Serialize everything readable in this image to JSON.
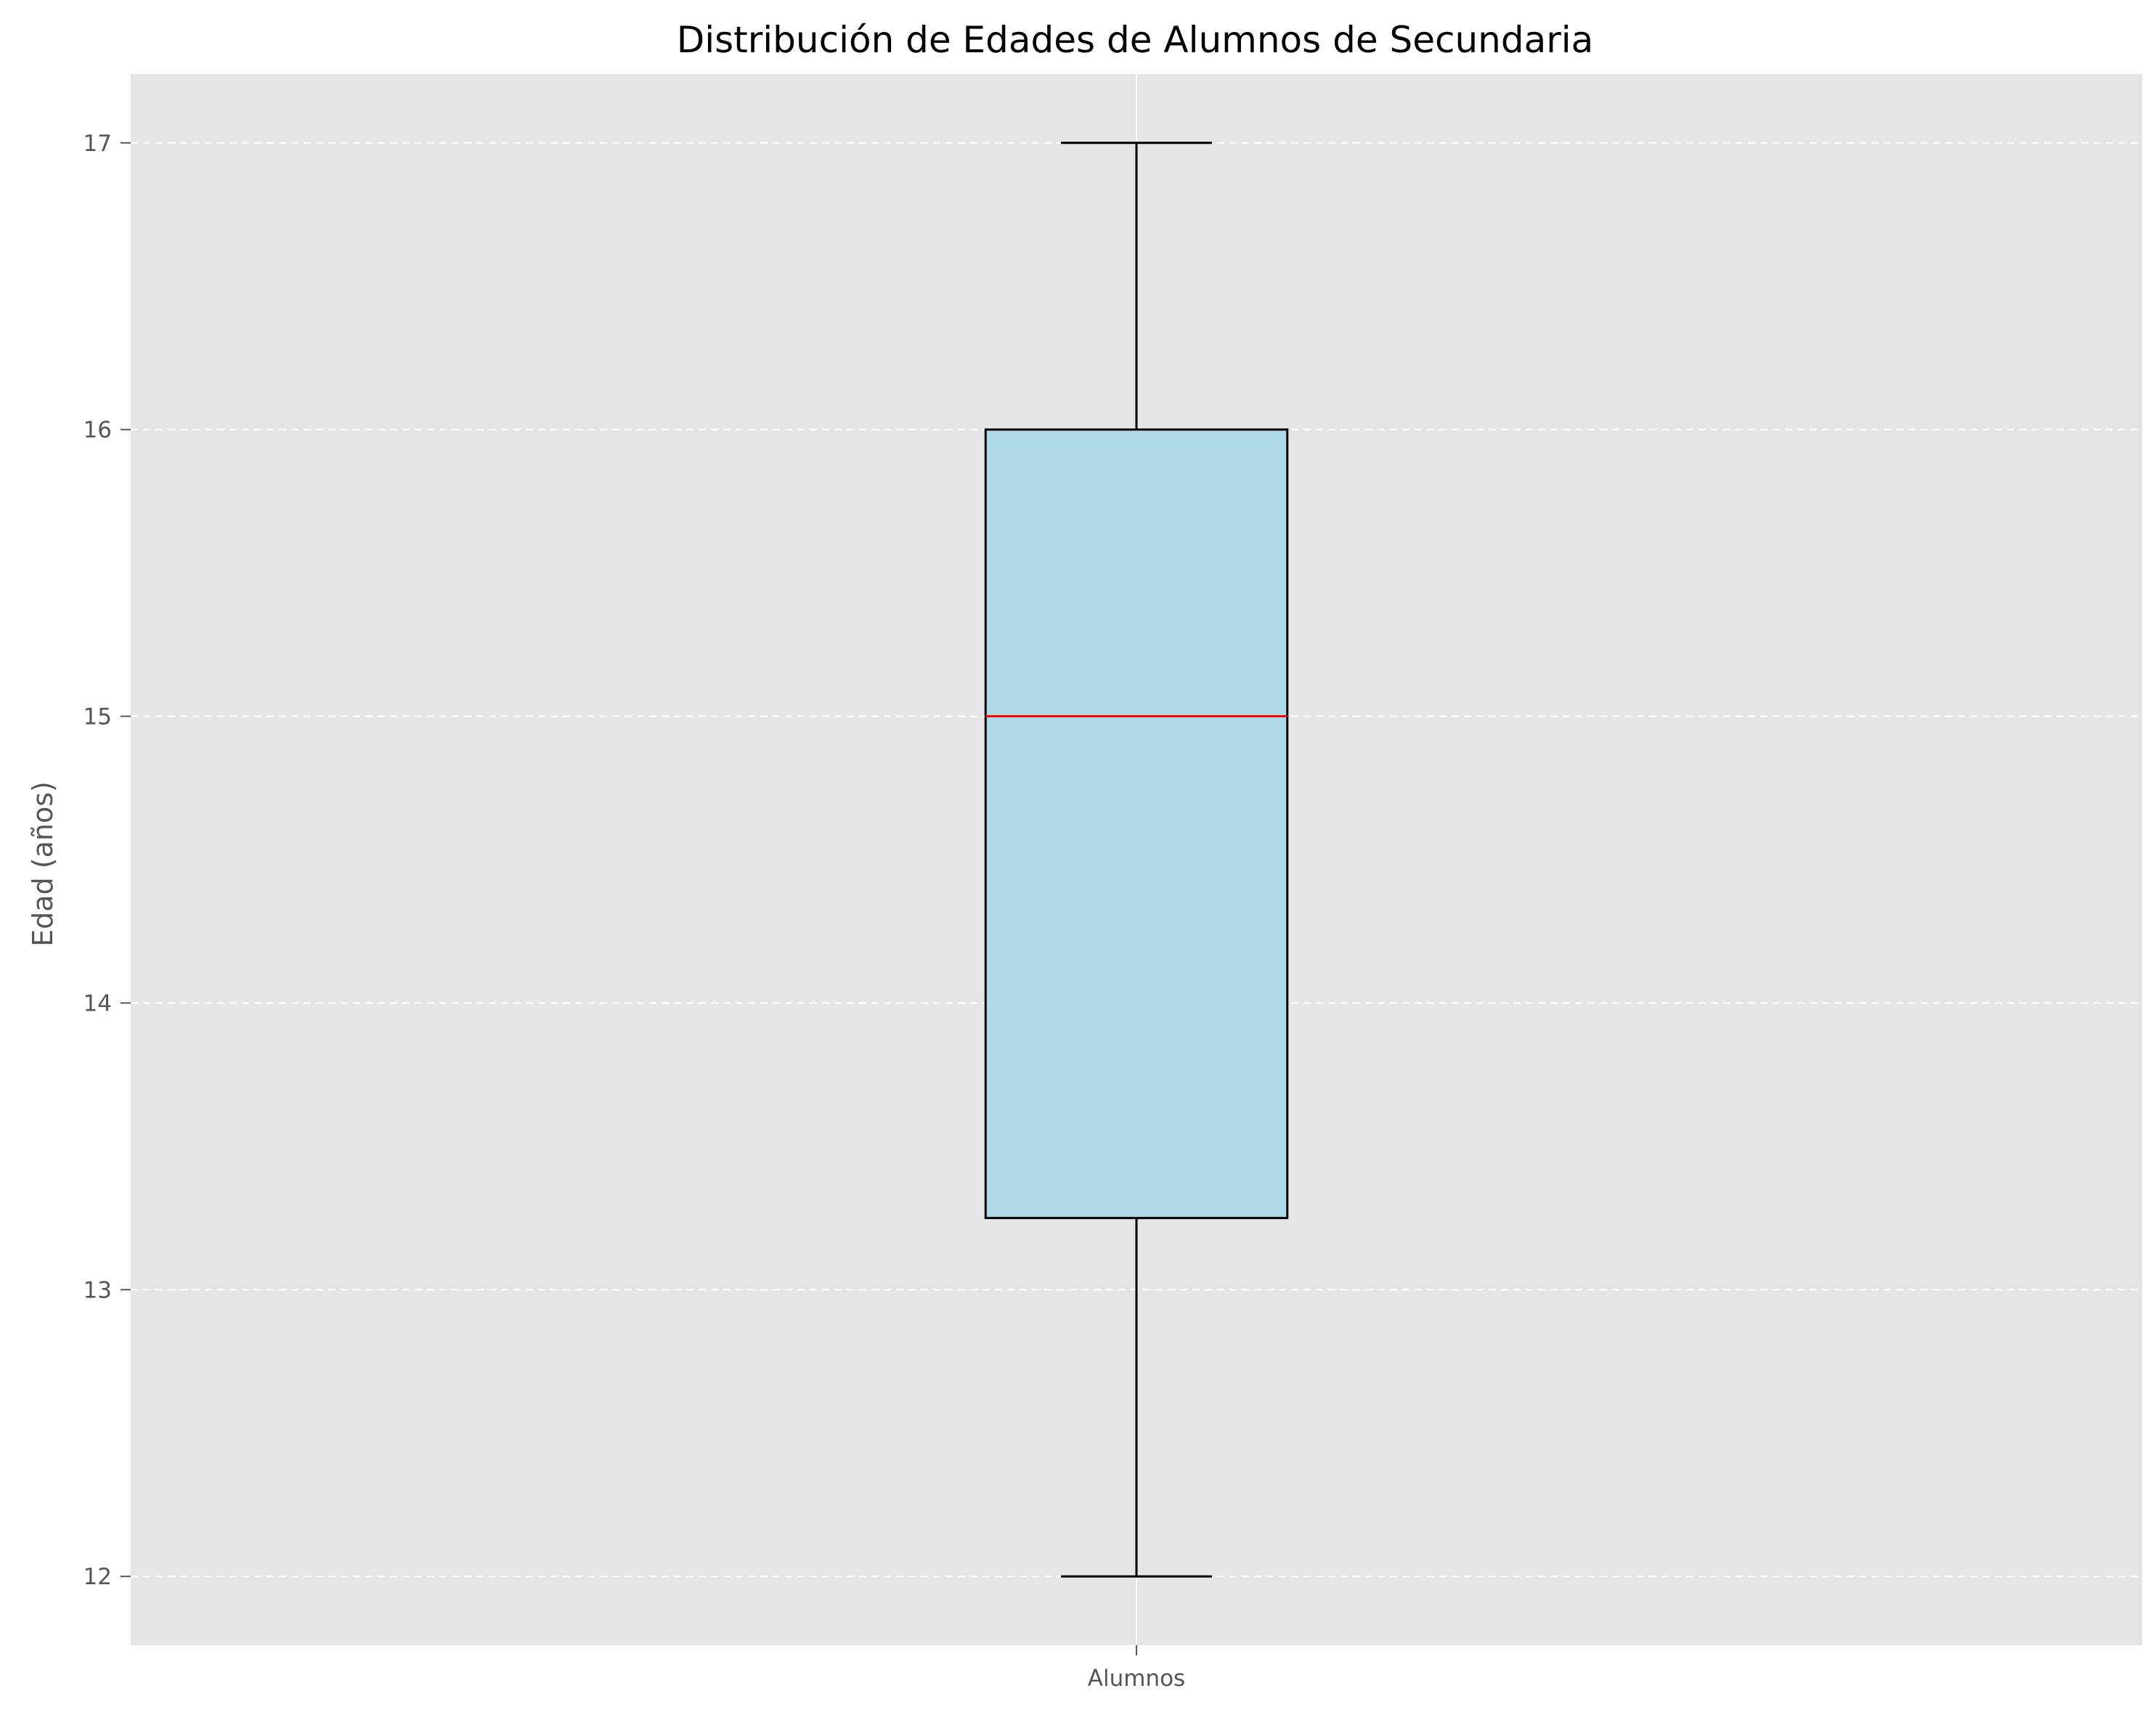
{
  "chart_data": {
    "type": "box",
    "title": "Distribución de Edades de Alumnos de Secundaria",
    "xlabel": "",
    "ylabel": "Edad (años)",
    "categories": [
      "Alumnos"
    ],
    "boxes": [
      {
        "category": "Alumnos",
        "whisker_low": 12,
        "q1": 13.25,
        "median": 15,
        "q3": 16,
        "whisker_high": 17
      }
    ],
    "ylim": [
      11.76,
      17.24
    ],
    "yticks": [
      12,
      13,
      14,
      15,
      16,
      17
    ],
    "grid": true,
    "colors": {
      "plot_background": "#e5e5e5",
      "box_fill": "#add8e6",
      "box_edge": "#000000",
      "median": "#ff0000",
      "grid": "#ffffff"
    }
  }
}
